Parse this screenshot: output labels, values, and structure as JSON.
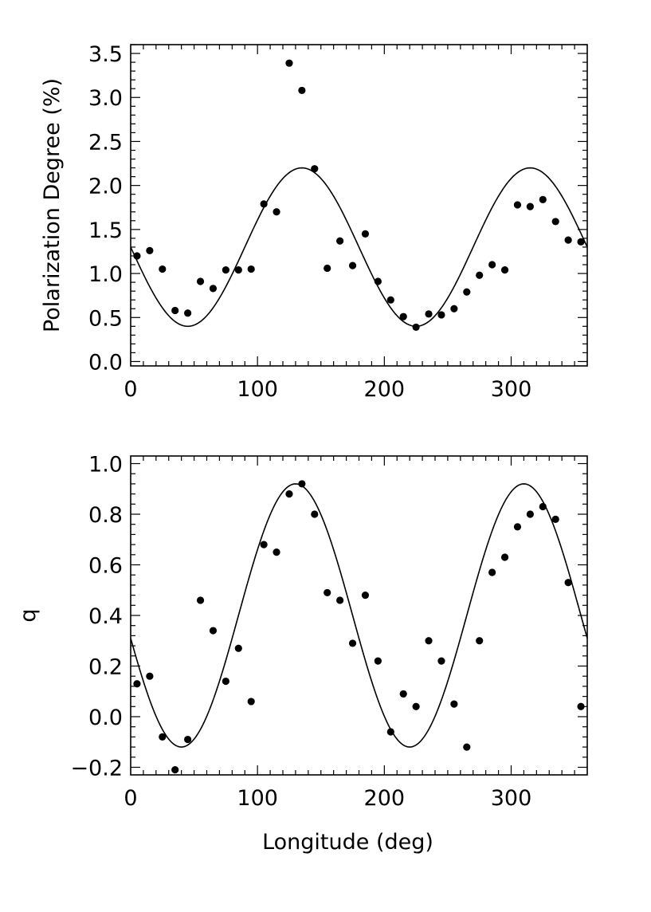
{
  "chart_data": [
    {
      "type": "scatter",
      "title": "",
      "xlabel": "",
      "ylabel": "Polarization Degree (%)",
      "xlim": [
        0,
        360
      ],
      "ylim": [
        -0.05,
        3.6
      ],
      "x_ticks": [
        0,
        100,
        200,
        300
      ],
      "x_tick_labels": [
        "0",
        "100",
        "200",
        "300"
      ],
      "y_ticks": [
        0.0,
        0.5,
        1.0,
        1.5,
        2.0,
        2.5,
        3.0,
        3.5
      ],
      "y_tick_labels": [
        "0.0",
        "0.5",
        "1.0",
        "1.5",
        "2.0",
        "2.5",
        "3.0",
        "3.5"
      ],
      "grid": false,
      "series": [
        {
          "kind": "points",
          "x": [
            5,
            15,
            25,
            35,
            45,
            55,
            65,
            75,
            85,
            95,
            105,
            115,
            125,
            135,
            145,
            155,
            165,
            175,
            185,
            195,
            205,
            215,
            225,
            235,
            245,
            255,
            265,
            275,
            285,
            295,
            305,
            315,
            325,
            335,
            345,
            355
          ],
          "y": [
            1.2,
            1.26,
            1.05,
            0.58,
            0.55,
            0.91,
            0.83,
            1.04,
            1.04,
            1.05,
            1.79,
            1.7,
            3.39,
            3.08,
            2.19,
            1.06,
            1.37,
            1.09,
            1.45,
            0.91,
            0.7,
            0.51,
            0.39,
            0.54,
            0.53,
            0.6,
            0.79,
            0.98,
            1.1,
            1.04,
            1.78,
            1.76,
            1.84,
            1.59,
            1.38,
            1.36
          ]
        },
        {
          "kind": "curve",
          "model": "offset + amplitude*cos(2*(x - peak_deg))",
          "offset": 1.3,
          "amplitude": 0.9,
          "peak_deg": 135
        }
      ]
    },
    {
      "type": "scatter",
      "title": "",
      "xlabel": "Longitude (deg)",
      "ylabel": "q",
      "xlim": [
        0,
        360
      ],
      "ylim": [
        -0.23,
        1.03
      ],
      "x_ticks": [
        0,
        100,
        200,
        300
      ],
      "x_tick_labels": [
        "0",
        "100",
        "200",
        "300"
      ],
      "y_ticks": [
        -0.2,
        0.0,
        0.2,
        0.4,
        0.6,
        0.8,
        1.0
      ],
      "y_tick_labels": [
        "−0.2",
        "0.0",
        "0.2",
        "0.4",
        "0.6",
        "0.8",
        "1.0"
      ],
      "grid": false,
      "series": [
        {
          "kind": "points",
          "x": [
            5,
            15,
            25,
            35,
            45,
            55,
            65,
            75,
            85,
            95,
            105,
            115,
            125,
            135,
            145,
            155,
            165,
            175,
            185,
            195,
            205,
            215,
            225,
            235,
            245,
            255,
            265,
            275,
            285,
            295,
            305,
            315,
            325,
            335,
            345,
            355
          ],
          "y": [
            0.13,
            0.16,
            -0.08,
            -0.21,
            -0.09,
            0.46,
            0.34,
            0.14,
            0.27,
            0.06,
            0.68,
            0.65,
            0.88,
            0.92,
            0.8,
            0.49,
            0.46,
            0.29,
            0.48,
            0.22,
            -0.06,
            0.09,
            0.04,
            0.3,
            0.22,
            0.05,
            -0.12,
            0.3,
            0.57,
            0.63,
            0.75,
            0.8,
            0.83,
            0.78,
            0.53,
            0.04
          ]
        },
        {
          "kind": "curve",
          "model": "offset + amplitude*cos(2*(x - peak_deg))",
          "offset": 0.4,
          "amplitude": 0.52,
          "peak_deg": 130
        }
      ]
    }
  ]
}
